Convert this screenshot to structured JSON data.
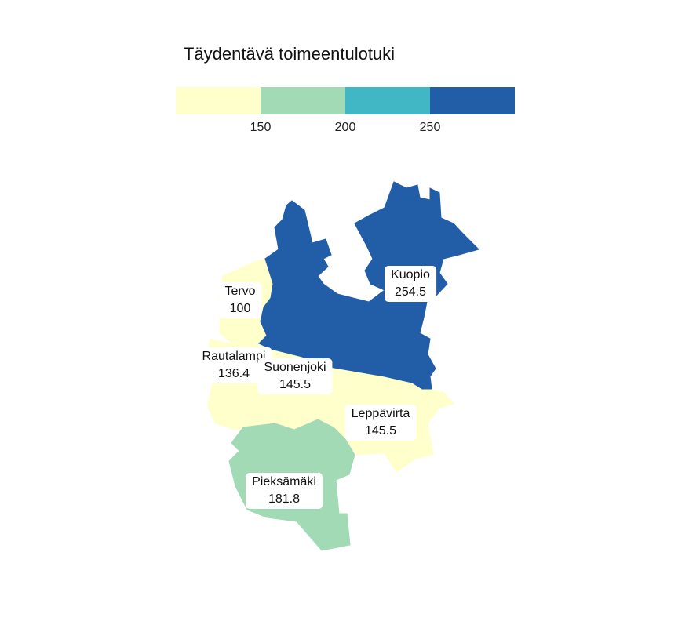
{
  "legend": {
    "title": "Täydentävä toimeentulotuki",
    "colors": [
      "#ffffcc",
      "#a1dab4",
      "#41b6c4",
      "#225ea8"
    ],
    "ticks": [
      "150",
      "200",
      "250"
    ]
  },
  "municipalities": [
    {
      "name": "Kuopio",
      "value": "254.5",
      "color": "#225ea8"
    },
    {
      "name": "Tervo",
      "value": "100",
      "color": "#ffffcc"
    },
    {
      "name": "Rautalampi",
      "value": "136.4",
      "color": "#ffffcc"
    },
    {
      "name": "Suonenjoki",
      "value": "145.5",
      "color": "#ffffcc"
    },
    {
      "name": "Leppävirta",
      "value": "145.5",
      "color": "#ffffcc"
    },
    {
      "name": "Pieksämäki",
      "value": "181.8",
      "color": "#a1dab4"
    }
  ]
}
